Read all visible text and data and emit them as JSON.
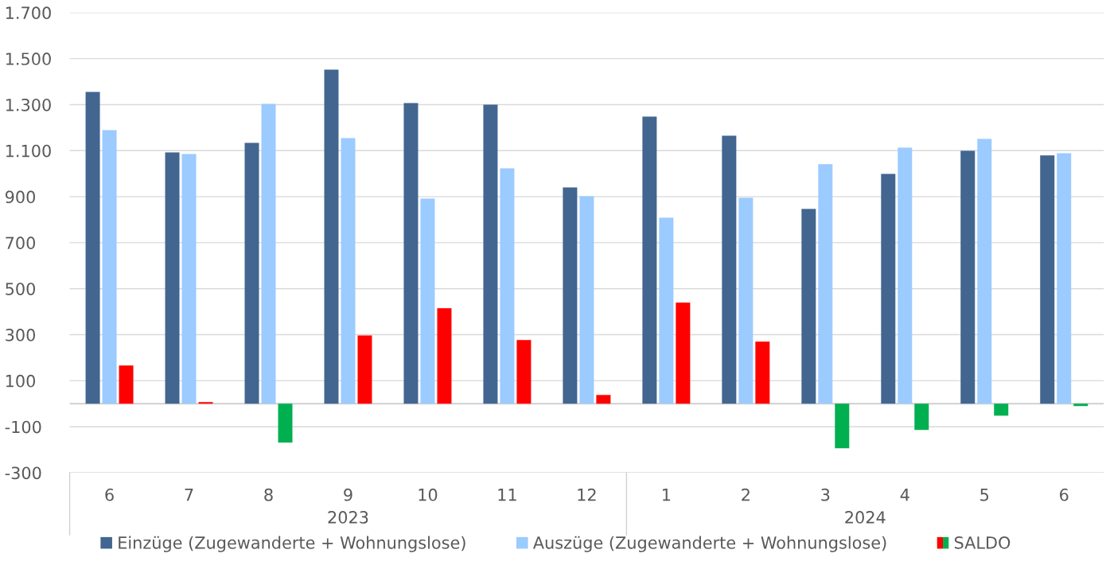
{
  "chart_data": {
    "type": "bar",
    "categories": [
      "6",
      "7",
      "8",
      "9",
      "10",
      "11",
      "12",
      "1",
      "2",
      "3",
      "4",
      "5",
      "6"
    ],
    "series": [
      {
        "name": "Einzüge (Zugewanderte + Wohnungslose)",
        "color": "#426690",
        "values": [
          1355,
          1092,
          1134,
          1452,
          1307,
          1300,
          940,
          1248,
          1165,
          847,
          999,
          1099,
          1079
        ]
      },
      {
        "name": "Auszüge (Zugewanderte + Wohnungslose)",
        "color": "#9bcbff",
        "values": [
          1189,
          1085,
          1303,
          1155,
          892,
          1023,
          902,
          809,
          895,
          1041,
          1113,
          1151,
          1089
        ]
      },
      {
        "name": "SALDO",
        "colors": [
          "#ff0000",
          "#ff0000",
          "#00b050",
          "#ff0000",
          "#ff0000",
          "#ff0000",
          "#ff0000",
          "#ff0000",
          "#ff0000",
          "#00b050",
          "#00b050",
          "#00b050",
          "#00b050"
        ],
        "values": [
          166,
          7,
          -169,
          297,
          415,
          277,
          38,
          439,
          270,
          -194,
          -114,
          -52,
          -10
        ]
      }
    ],
    "annotations": [
      "2023",
      "2024"
    ],
    "ylim": [
      -300,
      1700
    ],
    "yticks": [
      -300,
      -100,
      100,
      300,
      500,
      700,
      900,
      {
        "value": 1100,
        "label": "1.100"
      },
      {
        "value": 1300,
        "label": "1.300"
      },
      {
        "value": 1500,
        "label": "1.500"
      },
      {
        "value": 1700,
        "label": "1.700"
      }
    ],
    "grid": "y",
    "legend": "bottom"
  }
}
